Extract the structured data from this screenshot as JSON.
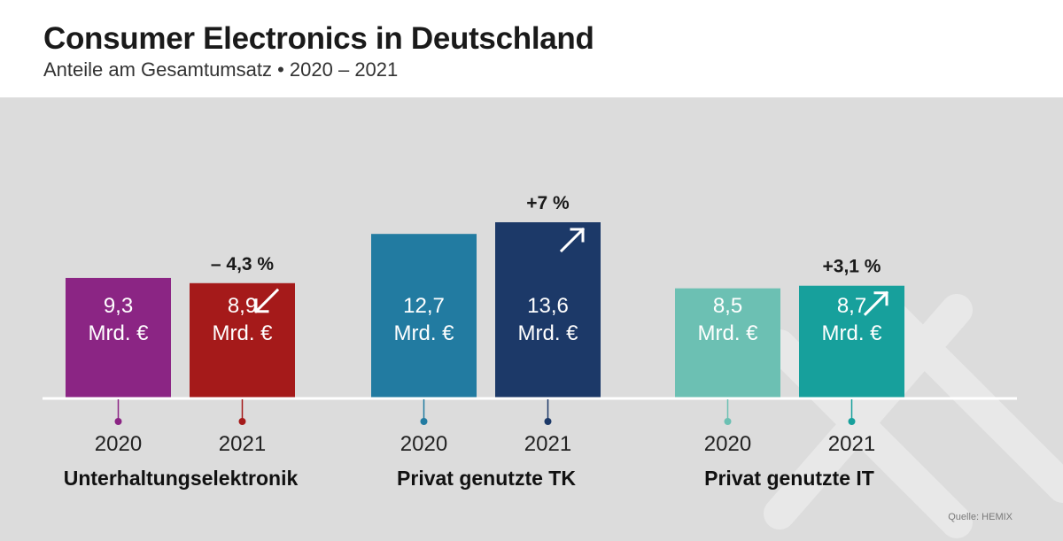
{
  "header": {
    "title": "Consumer Electronics in Deutschland",
    "subtitle": "Anteile am Gesamtumsatz • 2020 – 2021"
  },
  "source": "Quelle: HEMIX",
  "unit_label": "Mrd. €",
  "chart_data": {
    "type": "bar",
    "title": "Consumer Electronics in Deutschland",
    "subtitle": "Anteile am Gesamtumsatz • 2020 – 2021",
    "unit": "Mrd. €",
    "grid": false,
    "legend": "none",
    "ylim": [
      0,
      16
    ],
    "groups": [
      {
        "name": "Unterhaltungselektronik",
        "change": "– 4,3 %",
        "direction": "down",
        "bars": [
          {
            "year": "2020",
            "value": 9.3,
            "label": "9,3",
            "color": "#8b2584"
          },
          {
            "year": "2021",
            "value": 8.9,
            "label": "8,9",
            "color": "#a51a1a"
          }
        ]
      },
      {
        "name": "Privat genutzte TK",
        "change": "+7 %",
        "direction": "up",
        "bars": [
          {
            "year": "2020",
            "value": 12.7,
            "label": "12,7",
            "color": "#227ba1"
          },
          {
            "year": "2021",
            "value": 13.6,
            "label": "13,6",
            "color": "#1c3968"
          }
        ]
      },
      {
        "name": "Privat genutzte IT",
        "change": "+3,1 %",
        "direction": "up",
        "bars": [
          {
            "year": "2020",
            "value": 8.5,
            "label": "8,5",
            "color": "#6cc0b3"
          },
          {
            "year": "2021",
            "value": 8.7,
            "label": "8,7",
            "color": "#17a09c"
          }
        ]
      }
    ]
  }
}
